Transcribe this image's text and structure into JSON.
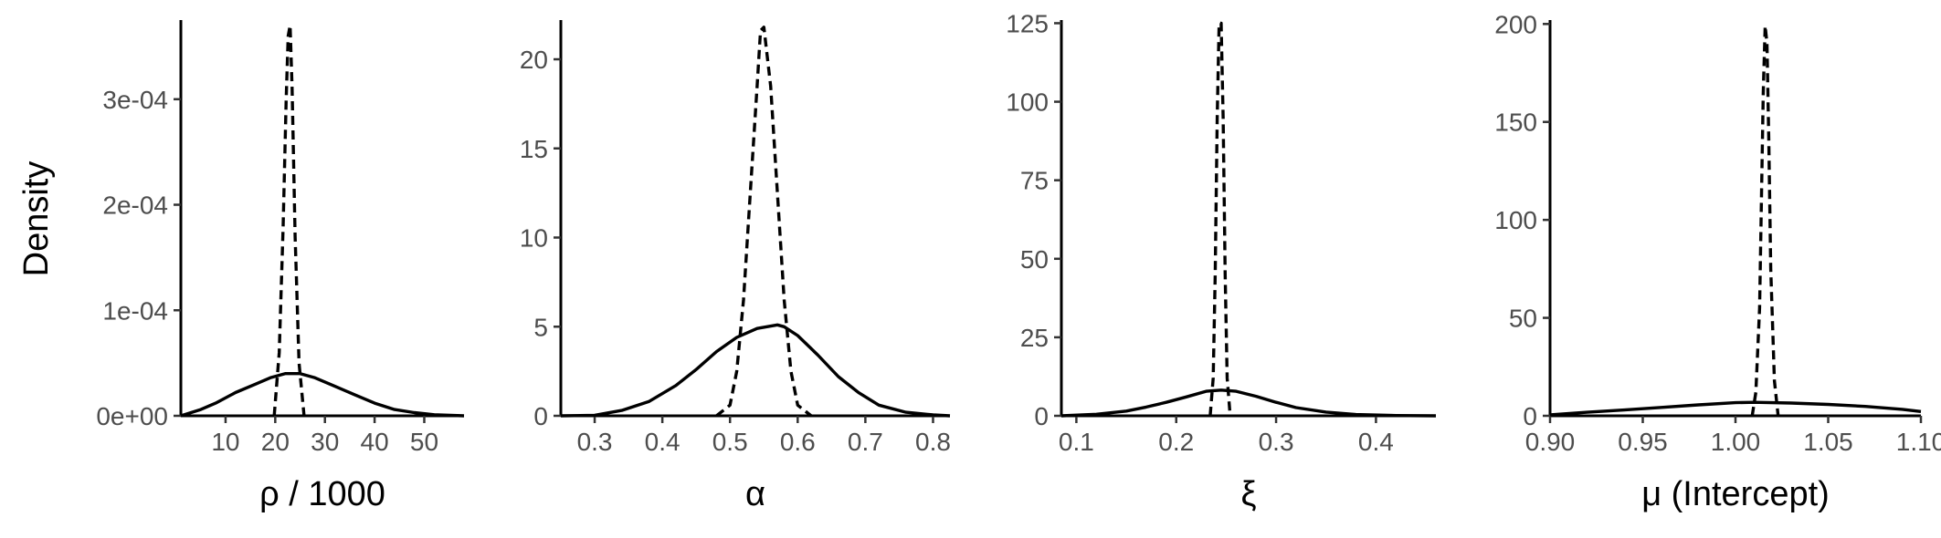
{
  "chart_data": {
    "ylabel": "Density",
    "panels": [
      {
        "type": "line",
        "xlabel": "ρ / 1000",
        "xlim": [
          1,
          58
        ],
        "ylim": [
          0,
          0.000375
        ],
        "xticks": [
          10,
          20,
          30,
          40,
          50
        ],
        "xtick_labels": [
          "10",
          "20",
          "30",
          "40",
          "50"
        ],
        "yticks": [
          0,
          0.0001,
          0.0002,
          0.0003
        ],
        "ytick_labels": [
          "0e+00",
          "1e-04",
          "2e-04",
          "3e-04"
        ],
        "series": [
          {
            "style": "solid",
            "x": [
              1,
              5,
              8,
              12,
              16,
              19,
              22,
              25,
              28,
              32,
              36,
              40,
              44,
              48,
              52,
              58
            ],
            "y": [
              0,
              6e-06,
              1.2e-05,
              2.2e-05,
              3e-05,
              3.6e-05,
              4e-05,
              4e-05,
              3.6e-05,
              2.8e-05,
              2e-05,
              1.2e-05,
              6e-06,
              3e-06,
              1e-06,
              0
            ]
          },
          {
            "style": "dashed",
            "x": [
              19.8,
              20.8,
              21.6,
              22.2,
              22.6,
              23.0,
              23.4,
              24.0,
              24.8,
              25.8
            ],
            "y": [
              0,
              6e-05,
              0.00018,
              0.0003,
              0.00036,
              0.00037,
              0.00031,
              0.00017,
              5e-05,
              0
            ]
          }
        ]
      },
      {
        "type": "line",
        "xlabel": "α",
        "xlim": [
          0.25,
          0.825
        ],
        "ylim": [
          0,
          22.2
        ],
        "xticks": [
          0.3,
          0.4,
          0.5,
          0.6,
          0.7,
          0.8
        ],
        "xtick_labels": [
          "0.3",
          "0.4",
          "0.5",
          "0.6",
          "0.7",
          "0.8"
        ],
        "yticks": [
          0,
          5,
          10,
          15,
          20
        ],
        "ytick_labels": [
          "0",
          "5",
          "10",
          "15",
          "20"
        ],
        "series": [
          {
            "style": "solid",
            "x": [
              0.25,
              0.3,
              0.34,
              0.38,
              0.42,
              0.45,
              0.48,
              0.51,
              0.54,
              0.57,
              0.58,
              0.6,
              0.63,
              0.66,
              0.69,
              0.72,
              0.76,
              0.8,
              0.825
            ],
            "y": [
              0,
              0.03,
              0.3,
              0.8,
              1.7,
              2.6,
              3.6,
              4.4,
              4.9,
              5.1,
              5.0,
              4.5,
              3.4,
              2.2,
              1.3,
              0.6,
              0.2,
              0.05,
              0
            ]
          },
          {
            "style": "dashed",
            "x": [
              0.48,
              0.5,
              0.51,
              0.52,
              0.53,
              0.54,
              0.545,
              0.55,
              0.56,
              0.57,
              0.58,
              0.59,
              0.6,
              0.62
            ],
            "y": [
              0,
              0.6,
              2.5,
              6.5,
              12.5,
              18.5,
              21.6,
              21.8,
              18.5,
              12.5,
              6.5,
              2.5,
              0.6,
              0
            ]
          }
        ]
      },
      {
        "type": "line",
        "xlabel": "ξ",
        "xlim": [
          0.085,
          0.46
        ],
        "ylim": [
          0,
          126
        ],
        "xticks": [
          0.1,
          0.2,
          0.3,
          0.4
        ],
        "xtick_labels": [
          "0.1",
          "0.2",
          "0.3",
          "0.4"
        ],
        "yticks": [
          0,
          25,
          50,
          75,
          100,
          125
        ],
        "ytick_labels": [
          "0",
          "25",
          "50",
          "75",
          "100",
          "125"
        ],
        "series": [
          {
            "style": "solid",
            "x": [
              0.085,
              0.12,
              0.15,
              0.17,
              0.19,
              0.21,
              0.23,
              0.245,
              0.26,
              0.28,
              0.3,
              0.32,
              0.35,
              0.38,
              0.42,
              0.46
            ],
            "y": [
              0,
              0.5,
              1.5,
              2.8,
              4.3,
              6,
              7.8,
              8.2,
              7.8,
              6.2,
              4.3,
              2.6,
              1.2,
              0.4,
              0.1,
              0
            ]
          },
          {
            "style": "dashed",
            "x": [
              0.234,
              0.237,
              0.239,
              0.241,
              0.243,
              0.245,
              0.247,
              0.249,
              0.251,
              0.254
            ],
            "y": [
              0,
              12,
              45,
              95,
              125,
              125,
              95,
              45,
              12,
              0
            ]
          }
        ]
      },
      {
        "type": "line",
        "xlabel": "μ (Intercept)",
        "xlim": [
          0.9,
          1.1
        ],
        "ylim": [
          0,
          202
        ],
        "xticks": [
          0.9,
          0.95,
          1.0,
          1.05,
          1.1
        ],
        "xtick_labels": [
          "0.90",
          "0.95",
          "1.00",
          "1.05",
          "1.10"
        ],
        "yticks": [
          0,
          50,
          100,
          150,
          200
        ],
        "ytick_labels": [
          "0",
          "50",
          "100",
          "150",
          "200"
        ],
        "series": [
          {
            "style": "solid",
            "x": [
              0.9,
              0.92,
              0.94,
              0.96,
              0.98,
              1.0,
              1.01,
              1.03,
              1.05,
              1.07,
              1.09,
              1.1
            ],
            "y": [
              0.5,
              1.8,
              3.0,
              4.3,
              5.6,
              6.7,
              6.9,
              6.5,
              5.8,
              4.8,
              3.3,
              2.2
            ]
          },
          {
            "style": "dashed",
            "x": [
              1.009,
              1.011,
              1.013,
              1.014,
              1.015,
              1.016,
              1.017,
              1.018,
              1.019,
              1.021,
              1.023
            ],
            "y": [
              0,
              12,
              55,
              110,
              165,
              199,
              190,
              140,
              75,
              18,
              0
            ]
          }
        ]
      }
    ]
  }
}
